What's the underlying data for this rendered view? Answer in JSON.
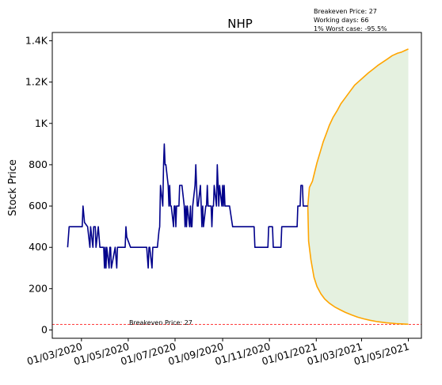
{
  "chart_data": {
    "type": "line",
    "title": "NHP",
    "xlabel": "",
    "ylabel": "Stock Price",
    "grid": false,
    "legend": "none",
    "x_ticks": [
      "01/03/2020",
      "01/05/2020",
      "01/07/2020",
      "01/09/2020",
      "01/11/2020",
      "01/01/2021",
      "01/03/2021",
      "01/05/2021"
    ],
    "y_ticks": [
      "0",
      "200",
      "400",
      "600",
      "800",
      "1K",
      "1.2K",
      "1.4K"
    ],
    "ylim": [
      -40,
      1440
    ],
    "xlim": [
      "2020-01-23",
      "2021-05-18"
    ],
    "info_text": [
      "Breakeven Price: 27",
      "Working days: 66",
      "1% Worst case: -95.5%"
    ],
    "breakeven": {
      "value": 27,
      "label": "Breakeven Price: 27",
      "color": "#ff0000"
    },
    "colors": {
      "price": "#00008b",
      "projection": "#ffa500",
      "band": "#e5f1e0"
    },
    "series": [
      {
        "role": "price",
        "points": [
          [
            "2020-02-12",
            400
          ],
          [
            "2020-02-14",
            500
          ],
          [
            "2020-02-20",
            500
          ],
          [
            "2020-02-26",
            500
          ],
          [
            "2020-03-02",
            500
          ],
          [
            "2020-03-03",
            600
          ],
          [
            "2020-03-05",
            520
          ],
          [
            "2020-03-09",
            500
          ],
          [
            "2020-03-12",
            400
          ],
          [
            "2020-03-13",
            500
          ],
          [
            "2020-03-16",
            400
          ],
          [
            "2020-03-17",
            500
          ],
          [
            "2020-03-19",
            500
          ],
          [
            "2020-03-20",
            400
          ],
          [
            "2020-03-23",
            500
          ],
          [
            "2020-03-25",
            400
          ],
          [
            "2020-03-27",
            400
          ],
          [
            "2020-03-30",
            400
          ],
          [
            "2020-03-31",
            300
          ],
          [
            "2020-04-01",
            400
          ],
          [
            "2020-04-02",
            300
          ],
          [
            "2020-04-03",
            400
          ],
          [
            "2020-04-06",
            300
          ],
          [
            "2020-04-07",
            400
          ],
          [
            "2020-04-08",
            400
          ],
          [
            "2020-04-09",
            300
          ],
          [
            "2020-04-14",
            400
          ],
          [
            "2020-04-16",
            300
          ],
          [
            "2020-04-17",
            400
          ],
          [
            "2020-04-20",
            400
          ],
          [
            "2020-04-24",
            400
          ],
          [
            "2020-04-27",
            400
          ],
          [
            "2020-04-28",
            500
          ],
          [
            "2020-04-29",
            450
          ],
          [
            "2020-05-04",
            400
          ],
          [
            "2020-05-11",
            400
          ],
          [
            "2020-05-18",
            400
          ],
          [
            "2020-05-25",
            400
          ],
          [
            "2020-05-27",
            300
          ],
          [
            "2020-05-28",
            400
          ],
          [
            "2020-05-29",
            400
          ],
          [
            "2020-06-01",
            300
          ],
          [
            "2020-06-02",
            400
          ],
          [
            "2020-06-05",
            400
          ],
          [
            "2020-06-08",
            400
          ],
          [
            "2020-06-10",
            480
          ],
          [
            "2020-06-11",
            500
          ],
          [
            "2020-06-12",
            700
          ],
          [
            "2020-06-15",
            600
          ],
          [
            "2020-06-16",
            800
          ],
          [
            "2020-06-17",
            900
          ],
          [
            "2020-06-18",
            800
          ],
          [
            "2020-06-19",
            800
          ],
          [
            "2020-06-22",
            700
          ],
          [
            "2020-06-23",
            600
          ],
          [
            "2020-06-24",
            700
          ],
          [
            "2020-06-25",
            600
          ],
          [
            "2020-06-26",
            600
          ],
          [
            "2020-06-29",
            500
          ],
          [
            "2020-06-30",
            600
          ],
          [
            "2020-07-01",
            600
          ],
          [
            "2020-07-02",
            500
          ],
          [
            "2020-07-03",
            600
          ],
          [
            "2020-07-06",
            600
          ],
          [
            "2020-07-07",
            700
          ],
          [
            "2020-07-10",
            700
          ],
          [
            "2020-07-13",
            600
          ],
          [
            "2020-07-14",
            500
          ],
          [
            "2020-07-15",
            600
          ],
          [
            "2020-07-16",
            500
          ],
          [
            "2020-07-17",
            600
          ],
          [
            "2020-07-20",
            500
          ],
          [
            "2020-07-21",
            600
          ],
          [
            "2020-07-22",
            500
          ],
          [
            "2020-07-23",
            500
          ],
          [
            "2020-07-24",
            600
          ],
          [
            "2020-07-27",
            700
          ],
          [
            "2020-07-28",
            800
          ],
          [
            "2020-07-29",
            700
          ],
          [
            "2020-07-30",
            600
          ],
          [
            "2020-07-31",
            600
          ],
          [
            "2020-08-03",
            700
          ],
          [
            "2020-08-04",
            600
          ],
          [
            "2020-08-05",
            500
          ],
          [
            "2020-08-06",
            600
          ],
          [
            "2020-08-07",
            500
          ],
          [
            "2020-08-10",
            600
          ],
          [
            "2020-08-11",
            600
          ],
          [
            "2020-08-12",
            700
          ],
          [
            "2020-08-13",
            600
          ],
          [
            "2020-08-14",
            600
          ],
          [
            "2020-08-17",
            600
          ],
          [
            "2020-08-18",
            500
          ],
          [
            "2020-08-19",
            600
          ],
          [
            "2020-08-20",
            600
          ],
          [
            "2020-08-21",
            700
          ],
          [
            "2020-08-24",
            600
          ],
          [
            "2020-08-25",
            800
          ],
          [
            "2020-08-26",
            700
          ],
          [
            "2020-08-27",
            600
          ],
          [
            "2020-08-28",
            700
          ],
          [
            "2020-08-31",
            600
          ],
          [
            "2020-09-01",
            700
          ],
          [
            "2020-09-02",
            600
          ],
          [
            "2020-09-03",
            700
          ],
          [
            "2020-09-04",
            600
          ],
          [
            "2020-09-07",
            600
          ],
          [
            "2020-09-10",
            600
          ],
          [
            "2020-09-14",
            500
          ],
          [
            "2020-09-21",
            500
          ],
          [
            "2020-10-01",
            500
          ],
          [
            "2020-10-12",
            500
          ],
          [
            "2020-10-13",
            400
          ],
          [
            "2020-10-20",
            400
          ],
          [
            "2020-10-30",
            400
          ],
          [
            "2020-10-31",
            500
          ],
          [
            "2020-11-05",
            500
          ],
          [
            "2020-11-06",
            400
          ],
          [
            "2020-11-10",
            400
          ],
          [
            "2020-11-16",
            400
          ],
          [
            "2020-11-17",
            500
          ],
          [
            "2020-11-25",
            500
          ],
          [
            "2020-12-03",
            500
          ],
          [
            "2020-12-07",
            500
          ],
          [
            "2020-12-08",
            600
          ],
          [
            "2020-12-11",
            600
          ],
          [
            "2020-12-12",
            700
          ],
          [
            "2020-12-14",
            700
          ],
          [
            "2020-12-15",
            600
          ],
          [
            "2020-12-18",
            600
          ],
          [
            "2020-12-21",
            600
          ]
        ]
      },
      {
        "role": "projection_best",
        "points": [
          [
            "2020-12-21",
            600
          ],
          [
            "2020-12-23",
            690
          ],
          [
            "2020-12-27",
            720
          ],
          [
            "2020-12-30",
            765
          ],
          [
            "2021-01-02",
            810
          ],
          [
            "2021-01-06",
            860
          ],
          [
            "2021-01-10",
            910
          ],
          [
            "2021-01-14",
            950
          ],
          [
            "2021-01-18",
            990
          ],
          [
            "2021-01-23",
            1030
          ],
          [
            "2021-01-28",
            1060
          ],
          [
            "2021-02-02",
            1095
          ],
          [
            "2021-02-08",
            1125
          ],
          [
            "2021-02-14",
            1155
          ],
          [
            "2021-02-20",
            1185
          ],
          [
            "2021-02-26",
            1205
          ],
          [
            "2021-03-04",
            1225
          ],
          [
            "2021-03-10",
            1245
          ],
          [
            "2021-03-16",
            1262
          ],
          [
            "2021-03-22",
            1280
          ],
          [
            "2021-03-28",
            1295
          ],
          [
            "2021-04-03",
            1310
          ],
          [
            "2021-04-10",
            1328
          ],
          [
            "2021-04-17",
            1340
          ],
          [
            "2021-04-22",
            1345
          ],
          [
            "2021-04-26",
            1352
          ],
          [
            "2021-05-01",
            1360
          ]
        ]
      },
      {
        "role": "projection_worst",
        "points": [
          [
            "2020-12-21",
            600
          ],
          [
            "2020-12-22",
            430
          ],
          [
            "2020-12-25",
            340
          ],
          [
            "2020-12-29",
            255
          ],
          [
            "2021-01-02",
            210
          ],
          [
            "2021-01-07",
            175
          ],
          [
            "2021-01-12",
            150
          ],
          [
            "2021-01-18",
            130
          ],
          [
            "2021-01-25",
            112
          ],
          [
            "2021-02-01",
            98
          ],
          [
            "2021-02-08",
            85
          ],
          [
            "2021-02-16",
            73
          ],
          [
            "2021-02-24",
            62
          ],
          [
            "2021-03-04",
            54
          ],
          [
            "2021-03-12",
            47
          ],
          [
            "2021-03-22",
            40
          ],
          [
            "2021-04-02",
            35
          ],
          [
            "2021-04-15",
            31
          ],
          [
            "2021-05-01",
            28
          ]
        ]
      }
    ]
  }
}
